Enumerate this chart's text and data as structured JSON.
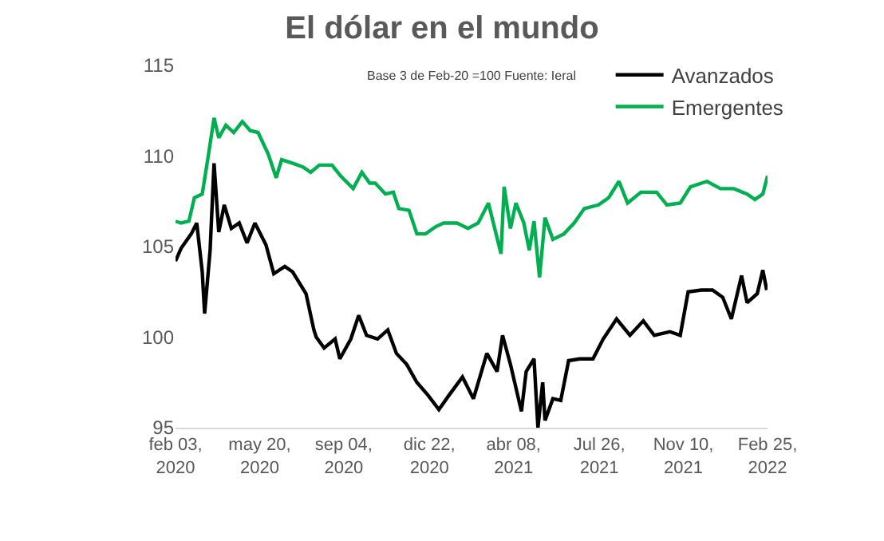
{
  "chart_data": {
    "type": "line",
    "title": "El dólar en el mundo",
    "subtitle": "Base 3 de Feb-20 =100 Fuente: Ieral",
    "xlim": [
      "2020-02-03",
      "2022-02-25"
    ],
    "xticks": [
      {
        "value": "2020-02-03",
        "label": "feb 03,\n2020"
      },
      {
        "value": "2020-05-20",
        "label": "may 20,\n2020"
      },
      {
        "value": "2020-09-04",
        "label": "sep 04,\n2020"
      },
      {
        "value": "2020-12-22",
        "label": "dic 22,\n2020"
      },
      {
        "value": "2021-04-08",
        "label": "abr 08,\n2021"
      },
      {
        "value": "2021-07-26",
        "label": "Jul 26,\n2021"
      },
      {
        "value": "2021-11-10",
        "label": "Nov 10,\n2021"
      },
      {
        "value": "2022-02-25",
        "label": "Feb 25,\n2022"
      }
    ],
    "ylim": [
      95,
      115
    ],
    "yticks": [
      95,
      100,
      105,
      110,
      115
    ],
    "grid": false,
    "legend": "top right",
    "marker": "none",
    "line_style": "solid",
    "series": [
      {
        "name": "Avanzados",
        "color": "#000000",
        "x": [
          "2020-02-03",
          "2020-02-10",
          "2020-02-23",
          "2020-03-01",
          "2020-03-08",
          "2020-03-11",
          "2020-03-18",
          "2020-03-23",
          "2020-03-29",
          "2020-04-05",
          "2020-04-14",
          "2020-04-24",
          "2020-05-04",
          "2020-05-14",
          "2020-05-28",
          "2020-06-07",
          "2020-06-21",
          "2020-07-01",
          "2020-07-18",
          "2020-07-28",
          "2020-07-31",
          "2020-08-10",
          "2020-08-24",
          "2020-08-30",
          "2020-09-13",
          "2020-09-23",
          "2020-10-03",
          "2020-10-17",
          "2020-10-30",
          "2020-11-10",
          "2020-11-23",
          "2020-12-06",
          "2020-12-20",
          "2021-01-03",
          "2021-01-16",
          "2021-02-02",
          "2021-02-16",
          "2021-03-05",
          "2021-03-18",
          "2021-03-25",
          "2021-04-04",
          "2021-04-18",
          "2021-04-24",
          "2021-05-04",
          "2021-05-09",
          "2021-05-15",
          "2021-05-18",
          "2021-05-28",
          "2021-06-07",
          "2021-06-17",
          "2021-07-01",
          "2021-07-18",
          "2021-07-31",
          "2021-08-17",
          "2021-09-03",
          "2021-09-20",
          "2021-10-04",
          "2021-10-24",
          "2021-11-06",
          "2021-11-16",
          "2021-12-03",
          "2021-12-17",
          "2021-12-30",
          "2022-01-10",
          "2022-01-23",
          "2022-01-30",
          "2022-02-12",
          "2022-02-19",
          "2022-02-24"
        ],
        "values": [
          104.2,
          104.9,
          105.7,
          106.3,
          103.6,
          101.3,
          104.8,
          109.6,
          105.8,
          107.3,
          106.0,
          106.3,
          105.2,
          106.3,
          105.1,
          103.5,
          103.9,
          103.6,
          102.4,
          100.4,
          100.0,
          99.4,
          99.9,
          98.8,
          99.9,
          101.2,
          100.1,
          99.9,
          100.4,
          99.1,
          98.5,
          97.5,
          96.8,
          96.0,
          96.8,
          97.8,
          96.6,
          99.1,
          98.1,
          100.1,
          98.5,
          95.9,
          98.1,
          98.8,
          95.0,
          97.5,
          95.4,
          96.6,
          96.5,
          98.7,
          98.8,
          98.8,
          99.9,
          101.0,
          100.1,
          100.9,
          100.1,
          100.3,
          100.1,
          102.5,
          102.6,
          102.6,
          102.2,
          101.0,
          103.4,
          101.9,
          102.4,
          103.7,
          102.6
        ]
      },
      {
        "name": "Emergentes",
        "color": "#00b050",
        "x": [
          "2020-02-03",
          "2020-02-10",
          "2020-02-20",
          "2020-02-27",
          "2020-03-08",
          "2020-03-16",
          "2020-03-23",
          "2020-03-29",
          "2020-04-07",
          "2020-04-17",
          "2020-04-28",
          "2020-05-08",
          "2020-05-18",
          "2020-05-31",
          "2020-06-10",
          "2020-06-17",
          "2020-07-01",
          "2020-07-14",
          "2020-07-24",
          "2020-08-04",
          "2020-08-20",
          "2020-08-31",
          "2020-09-16",
          "2020-09-27",
          "2020-10-07",
          "2020-10-14",
          "2020-10-27",
          "2020-11-06",
          "2020-11-13",
          "2020-11-26",
          "2020-12-06",
          "2020-12-17",
          "2020-12-30",
          "2021-01-09",
          "2021-01-26",
          "2021-02-09",
          "2021-02-22",
          "2021-03-07",
          "2021-03-15",
          "2021-03-23",
          "2021-03-27",
          "2021-04-04",
          "2021-04-11",
          "2021-04-21",
          "2021-04-28",
          "2021-05-04",
          "2021-05-11",
          "2021-05-18",
          "2021-05-28",
          "2021-06-11",
          "2021-06-24",
          "2021-07-07",
          "2021-07-25",
          "2021-08-07",
          "2021-08-20",
          "2021-08-31",
          "2021-09-17",
          "2021-10-07",
          "2021-10-20",
          "2021-11-06",
          "2021-11-19",
          "2021-12-10",
          "2021-12-27",
          "2022-01-13",
          "2022-01-30",
          "2022-02-09",
          "2022-02-19",
          "2022-02-25"
        ],
        "values": [
          106.4,
          106.3,
          106.4,
          107.7,
          107.9,
          110.1,
          112.1,
          111.0,
          111.7,
          111.3,
          111.9,
          111.4,
          111.3,
          110.1,
          108.8,
          109.8,
          109.6,
          109.4,
          109.1,
          109.5,
          109.5,
          108.9,
          108.2,
          109.1,
          108.5,
          108.5,
          107.9,
          108.0,
          107.1,
          107.0,
          105.7,
          105.7,
          106.1,
          106.3,
          106.3,
          106.0,
          106.3,
          107.4,
          106.0,
          104.6,
          108.3,
          106.0,
          107.4,
          106.3,
          104.8,
          106.4,
          103.3,
          106.6,
          105.4,
          105.7,
          106.3,
          107.1,
          107.3,
          107.7,
          108.6,
          107.4,
          108.0,
          108.0,
          107.3,
          107.4,
          108.3,
          108.6,
          108.2,
          108.2,
          107.9,
          107.6,
          107.9,
          108.9
        ]
      }
    ]
  }
}
